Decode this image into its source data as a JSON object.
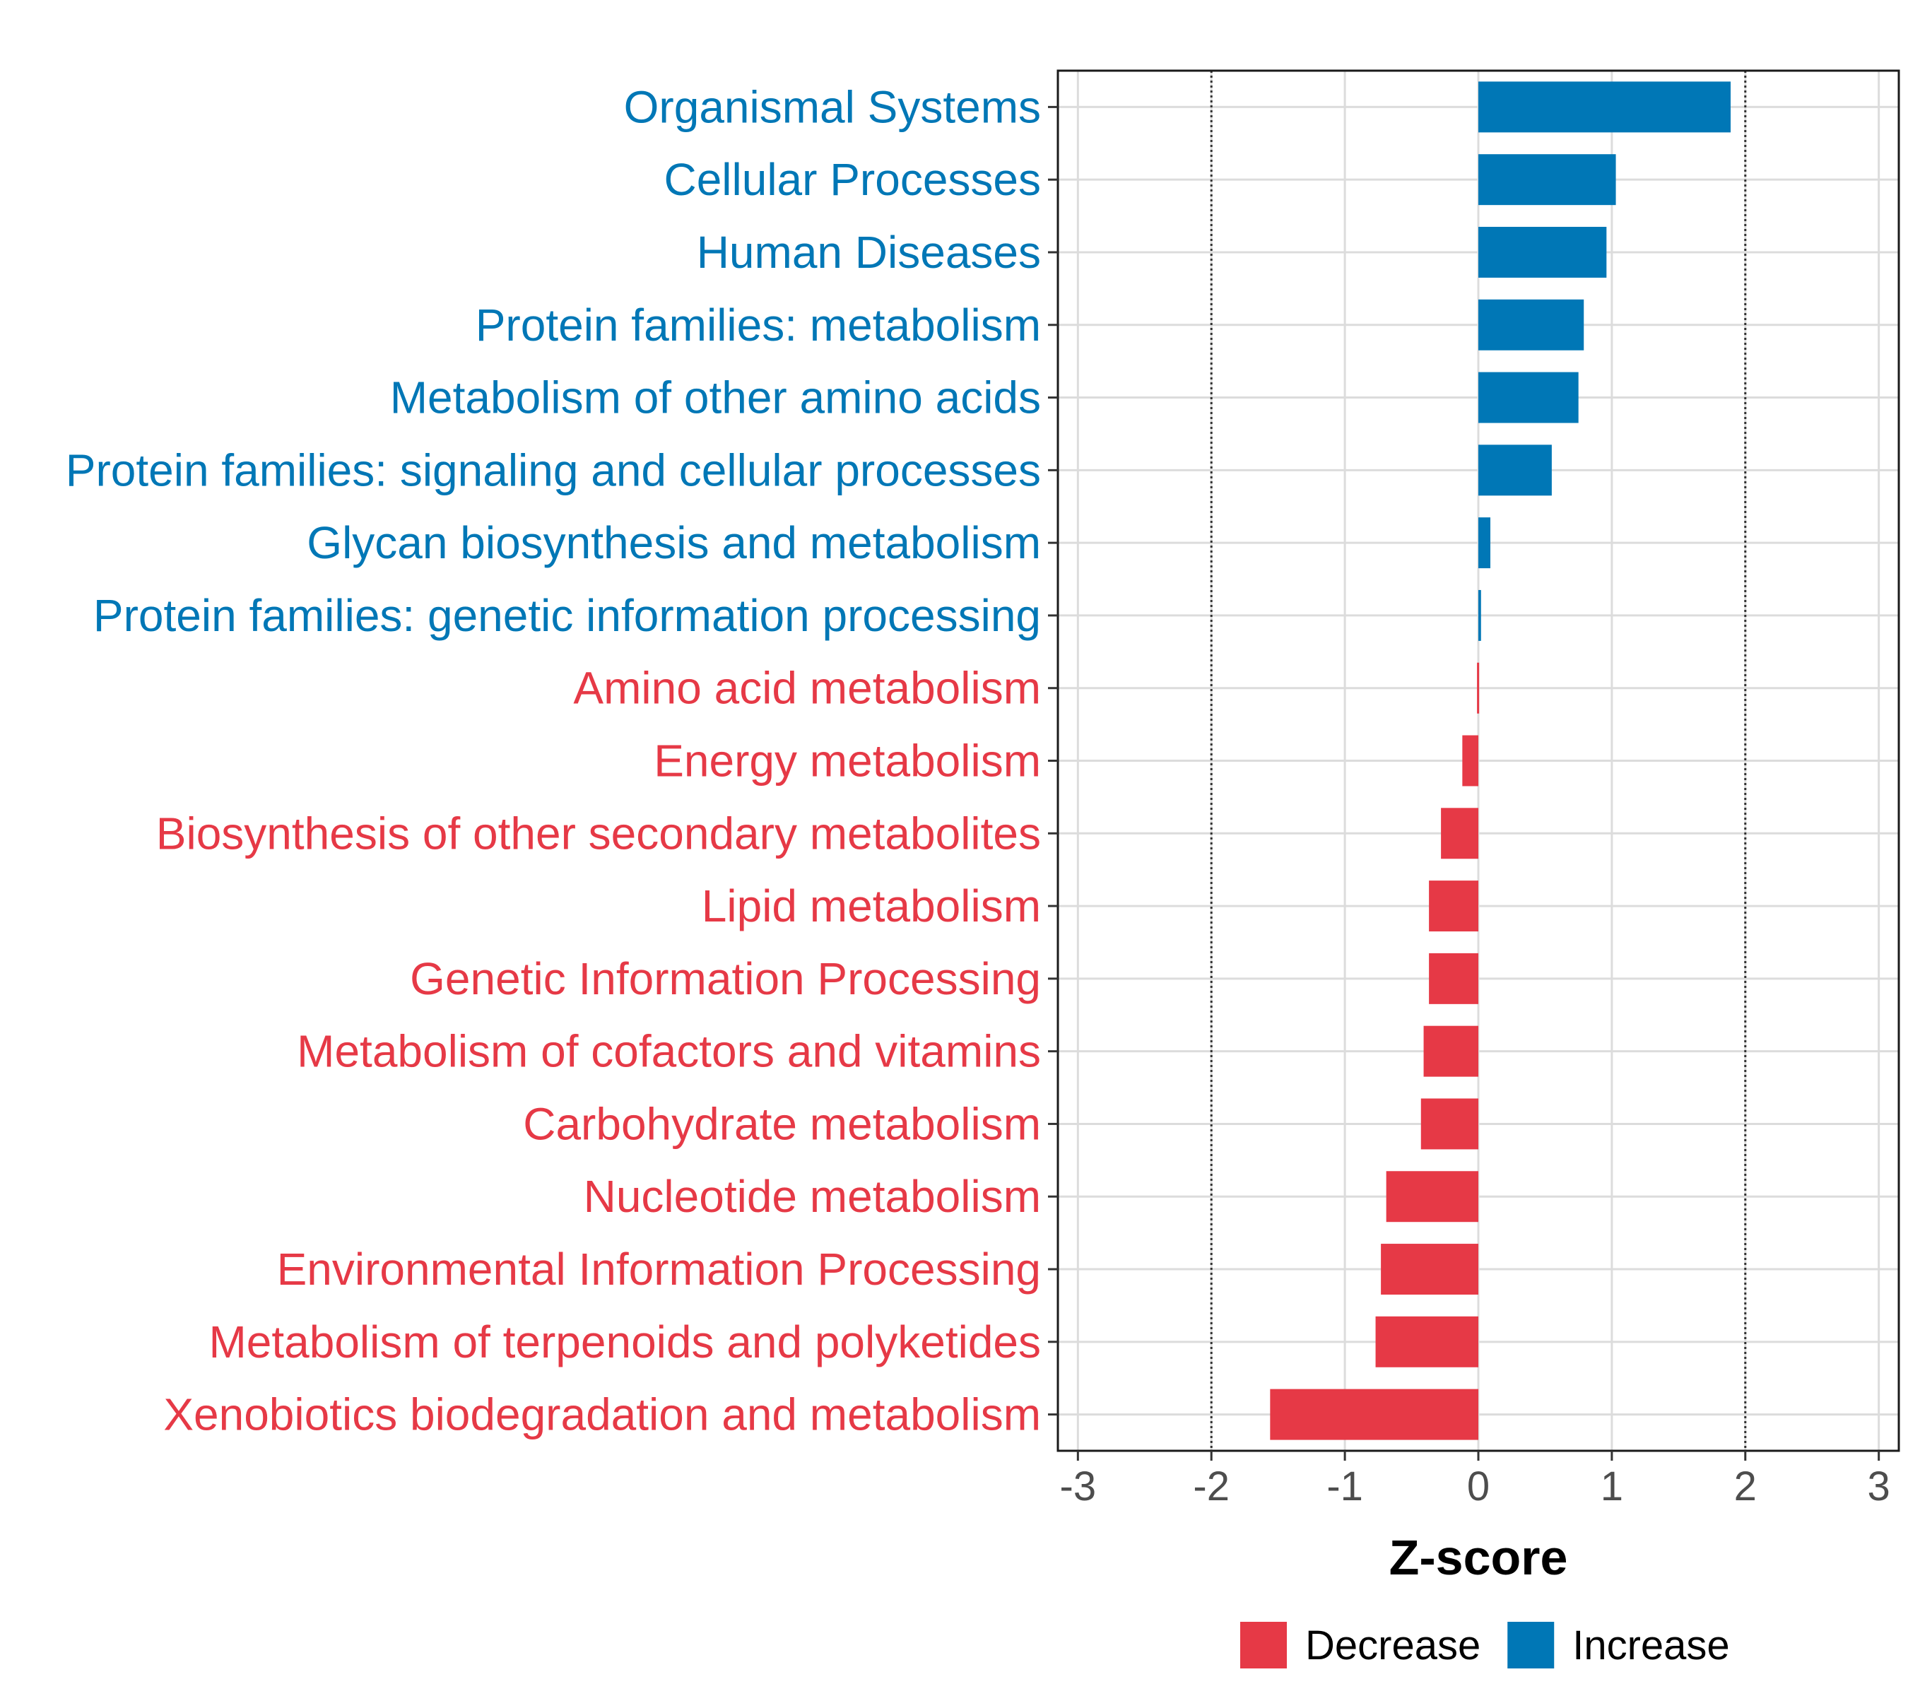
{
  "chart_data": {
    "type": "bar",
    "orientation": "horizontal",
    "title": "",
    "xlabel": "Z-score",
    "ylabel": "",
    "xlim": [
      -3.15,
      3.15
    ],
    "xticks": [
      -3,
      -2,
      -1,
      0,
      1,
      2,
      3
    ],
    "reference_lines": [
      -2,
      2
    ],
    "grid": true,
    "legend_position": "bottom",
    "categories": [
      "Organismal Systems",
      "Cellular Processes",
      "Human Diseases",
      "Protein families: metabolism",
      "Metabolism of other amino acids",
      "Protein families: signaling and cellular processes",
      "Glycan biosynthesis and metabolism",
      "Protein families: genetic information processing",
      "Amino acid metabolism",
      "Energy metabolism",
      "Biosynthesis of other secondary metabolites",
      "Lipid metabolism",
      "Genetic Information Processing",
      "Metabolism of cofactors and vitamins",
      "Carbohydrate metabolism",
      "Nucleotide metabolism",
      "Environmental Information Processing",
      "Metabolism of terpenoids and polyketides",
      "Xenobiotics biodegradation and metabolism"
    ],
    "values": [
      1.89,
      1.03,
      0.96,
      0.79,
      0.75,
      0.55,
      0.09,
      0.02,
      -0.01,
      -0.12,
      -0.28,
      -0.37,
      -0.37,
      -0.41,
      -0.43,
      -0.69,
      -0.73,
      -0.77,
      -1.56
    ],
    "groups": [
      "Increase",
      "Increase",
      "Increase",
      "Increase",
      "Increase",
      "Increase",
      "Increase",
      "Increase",
      "Decrease",
      "Decrease",
      "Decrease",
      "Decrease",
      "Decrease",
      "Decrease",
      "Decrease",
      "Decrease",
      "Decrease",
      "Decrease",
      "Decrease"
    ],
    "legend": [
      {
        "name": "Decrease",
        "color": "#e63946"
      },
      {
        "name": "Increase",
        "color": "#0077b6"
      }
    ]
  }
}
